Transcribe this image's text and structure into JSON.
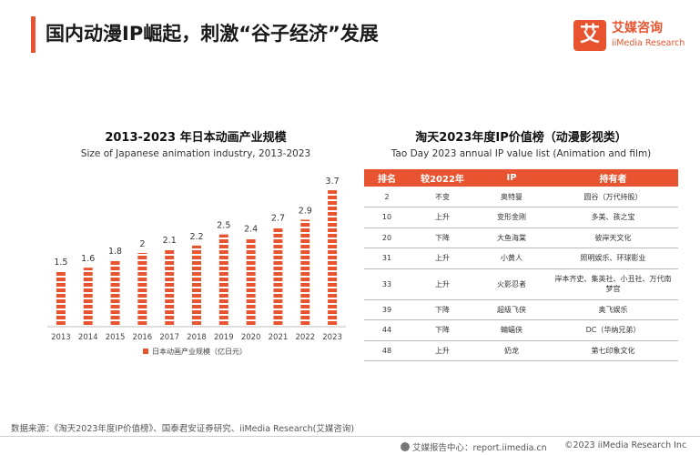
{
  "header": {
    "title": "国内动漫IP崛起，刺激“谷子经济”发展",
    "accent_color": "#e8542f"
  },
  "logo": {
    "mark": "艾",
    "cn": "艾媒咨询",
    "en": "iiMedia Research"
  },
  "chart_data": {
    "type": "bar",
    "title": "2013-2023 年日本动画产业规模",
    "subtitle": "Size of Japanese animation industry, 2013-2023",
    "categories": [
      "2013",
      "2014",
      "2015",
      "2016",
      "2017",
      "2018",
      "2019",
      "2020",
      "2021",
      "2022",
      "2023"
    ],
    "series": [
      {
        "name": "日本动画产业规模（亿日元）",
        "values": [
          1.5,
          1.6,
          1.8,
          2,
          2.1,
          2.2,
          2.5,
          2.4,
          2.7,
          2.9,
          3.7
        ]
      }
    ],
    "data_labels": [
      "1.5",
      "1.6",
      "1.8",
      "2",
      "2.1",
      "2.2",
      "2.5",
      "2.4",
      "2.7",
      "2.9",
      "3.7"
    ],
    "ylim": [
      0,
      3.8
    ],
    "grid": false,
    "legend_position": "bottom",
    "bar_color": "#e8542f"
  },
  "table": {
    "title": "淘天2023年度IP价值榜（动漫影视类）",
    "subtitle": "Tao Day 2023 annual IP value list (Animation and film)",
    "headers": [
      "排名",
      "较2022年",
      "IP",
      "持有者"
    ],
    "rows": [
      [
        "2",
        "不变",
        "奥特曼",
        "圆谷（万代持股）"
      ],
      [
        "10",
        "上升",
        "变形金刚",
        "多美、孩之宝"
      ],
      [
        "20",
        "下降",
        "大鱼海棠",
        "彼岸天文化"
      ],
      [
        "31",
        "上升",
        "小黄人",
        "照明娱乐、环球影业"
      ],
      [
        "33",
        "上升",
        "火影忍者",
        "岸本齐史、集英社、小丑社、万代南梦宫"
      ],
      [
        "39",
        "下降",
        "超级飞侠",
        "奥飞娱乐"
      ],
      [
        "44",
        "下降",
        "蝙蝠侠",
        "DC（华纳兄弟）"
      ],
      [
        "48",
        "上升",
        "奶龙",
        "第七印象文化"
      ]
    ]
  },
  "footer": {
    "source": "数据来源：《淘天2023年度IP价值榜》、国泰君安证券研究、iiMedia Research(艾媒咨询)",
    "center": "艾媒报告中心：report.iimedia.cn",
    "copyright": "©2023  iiMedia Research  Inc"
  }
}
